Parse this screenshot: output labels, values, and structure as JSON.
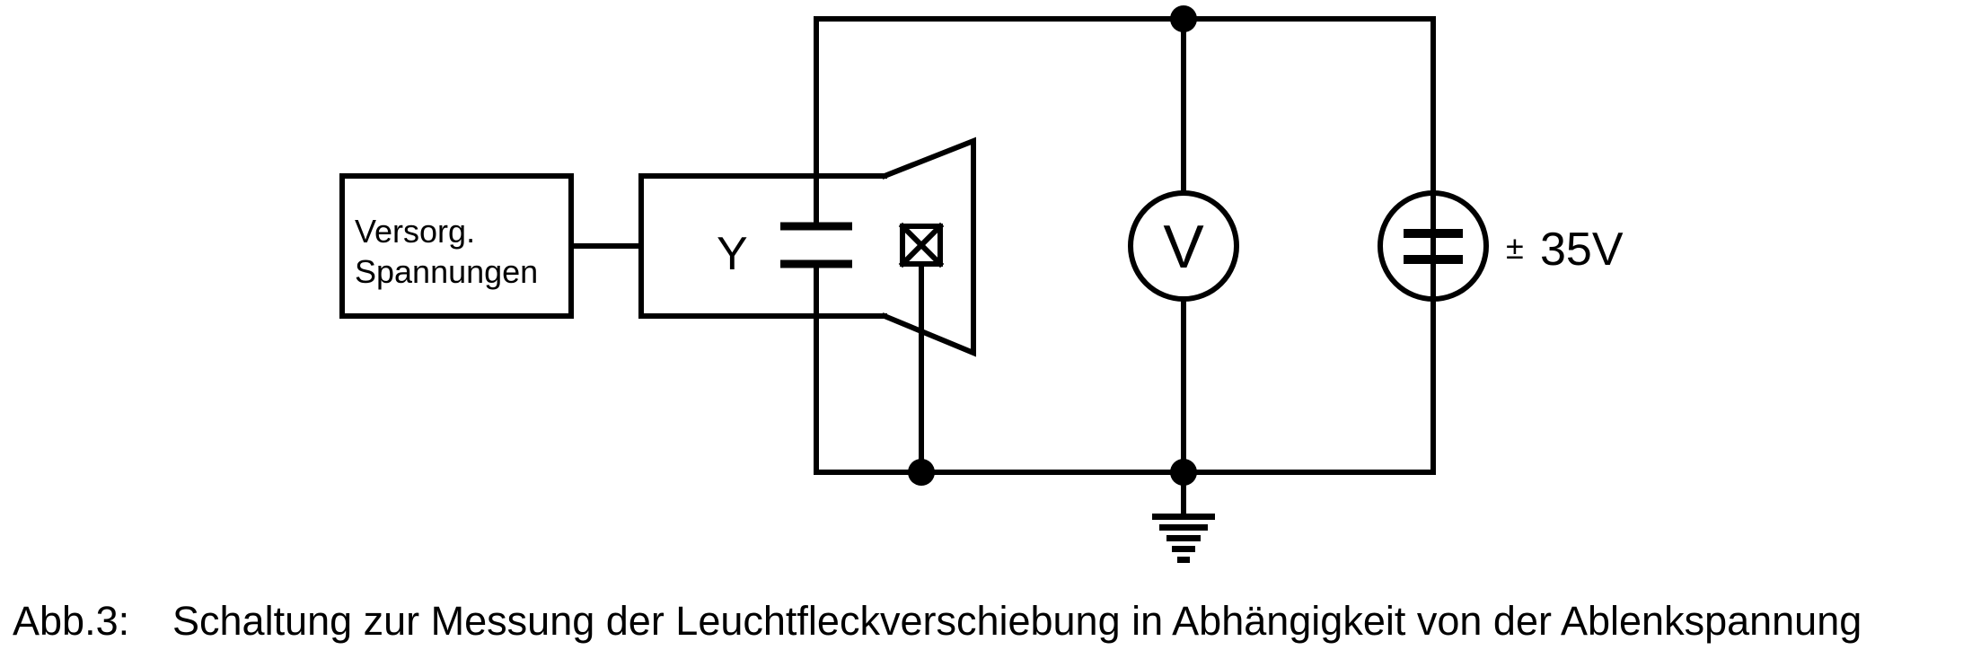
{
  "diagram": {
    "supply_box": {
      "line1": "Versorg.",
      "line2": "Spannungen"
    },
    "deflection_plate_label": "Y",
    "voltmeter_symbol": "V",
    "source_value": "35V",
    "source_sign": "±",
    "components": {
      "voltmeter_icon": "circle-V",
      "dc_source_icon": "circle-equals",
      "ground_icon": "ground-symbol",
      "screen_electrode_icon": "boxed-x"
    }
  },
  "caption": {
    "label": "Abb.3:",
    "text": "Schaltung zur Messung der Leuchtfleckverschiebung in Abhängigkeit von der Ablenkspannung"
  }
}
